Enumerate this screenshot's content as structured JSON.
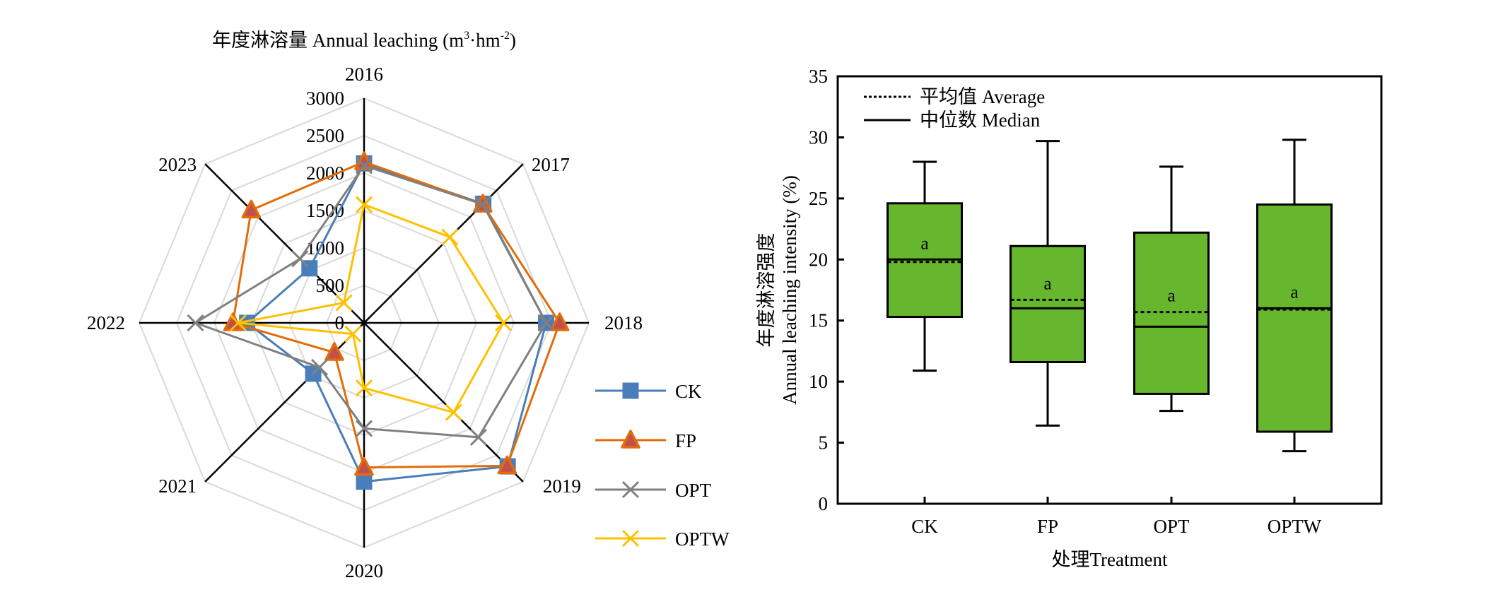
{
  "chart_data": [
    {
      "type": "radar",
      "title": "年度淋溶量 Annual leaching (m³·hm⁻²)",
      "title_parts": {
        "main": "年度淋溶量 Annual leaching (m",
        "sup1": "3",
        "mid": "·hm",
        "sup2": "-2",
        "end": ")"
      },
      "categories": [
        "2016",
        "2017",
        "2018",
        "2019",
        "2020",
        "2021",
        "2022",
        "2023"
      ],
      "rlim": [
        0,
        3000
      ],
      "rticks": [
        "0",
        "500",
        "1000",
        "1500",
        "2000",
        "2500",
        "3000"
      ],
      "rtick_values": [
        0,
        500,
        1000,
        1500,
        2000,
        2500,
        3000
      ],
      "grid": true,
      "legend_position": "bottom-right",
      "series": [
        {
          "name": "CK",
          "color": "#4A7EBB",
          "marker": "square",
          "marker_fill": "#4A7EBB",
          "values": [
            2130,
            2250,
            2430,
            2710,
            2120,
            960,
            1560,
            1030
          ]
        },
        {
          "name": "FP",
          "color": "#E36C09",
          "marker": "triangle",
          "marker_fill": "#C0504D",
          "values": [
            2150,
            2240,
            2610,
            2700,
            1930,
            560,
            1750,
            2130
          ]
        },
        {
          "name": "OPT",
          "color": "#808080",
          "marker": "x",
          "marker_fill": "#808080",
          "values": [
            2100,
            2240,
            2430,
            2160,
            1410,
            840,
            2250,
            1210
          ]
        },
        {
          "name": "OPTW",
          "color": "#FFC000",
          "marker": "x",
          "marker_fill": "#FFC000",
          "values": [
            1580,
            1620,
            1860,
            1690,
            870,
            210,
            1680,
            380
          ]
        }
      ]
    },
    {
      "type": "box",
      "title": "",
      "xlabel": "处理Treatment",
      "ylabel_line1": "年度淋溶强度",
      "ylabel_line2": "Annual leaching intensity (%)",
      "ylim": [
        0,
        35
      ],
      "yticks": [
        "0",
        "5",
        "10",
        "15",
        "20",
        "25",
        "30",
        "35"
      ],
      "ytick_values": [
        0,
        5,
        10,
        15,
        20,
        25,
        30,
        35
      ],
      "categories": [
        "CK",
        "FP",
        "OPT",
        "OPTW"
      ],
      "box_color": "#67B72E",
      "legend_position": "top-left",
      "legend": [
        {
          "label": "平均值 Average",
          "style": "dashed"
        },
        {
          "label": "中位数 Median",
          "style": "solid"
        }
      ],
      "boxes": [
        {
          "name": "CK",
          "whisker_low": 10.9,
          "q1": 15.3,
          "median": 20.0,
          "mean": 19.8,
          "q3": 24.6,
          "whisker_high": 28.0,
          "letter": "a"
        },
        {
          "name": "FP",
          "whisker_low": 6.4,
          "q1": 11.6,
          "median": 16.0,
          "mean": 16.7,
          "q3": 21.1,
          "whisker_high": 29.7,
          "letter": "a"
        },
        {
          "name": "OPT",
          "whisker_low": 7.6,
          "q1": 9.0,
          "median": 14.5,
          "mean": 15.7,
          "q3": 22.2,
          "whisker_high": 27.6,
          "letter": "a"
        },
        {
          "name": "OPTW",
          "whisker_low": 4.3,
          "q1": 5.9,
          "median": 16.0,
          "mean": 15.9,
          "q3": 24.5,
          "whisker_high": 29.8,
          "letter": "a"
        }
      ]
    }
  ]
}
